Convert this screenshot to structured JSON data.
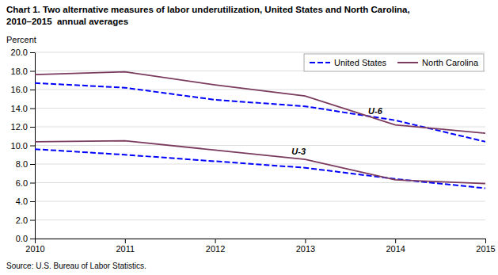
{
  "chart_data": {
    "type": "line",
    "title": "Chart 1. Two alternative measures of labor underutilization, United States and North Carolina,",
    "subtitle": "2010–2015  annual averages",
    "y_label": "Percent",
    "source": "Source: U.S. Bureau of Labor Statistics.",
    "x": [
      2010,
      2011,
      2012,
      2013,
      2014,
      2015
    ],
    "series": [
      {
        "name": "United States",
        "color": "#0000FF",
        "line_style": "dashed",
        "values": [
          16.7,
          16.2,
          14.9,
          14.2,
          12.7,
          10.4
        ]
      },
      {
        "name": "North Carolina",
        "color": "#7B3B5E",
        "line_style": "solid",
        "values": [
          17.6,
          17.9,
          16.5,
          15.3,
          12.2,
          11.3
        ]
      },
      {
        "name": "United States",
        "color": "#0000FF",
        "line_style": "dashed",
        "values": [
          9.6,
          9.0,
          8.3,
          7.6,
          6.4,
          5.4
        ]
      },
      {
        "name": "North Carolina",
        "color": "#7B3B5E",
        "line_style": "solid",
        "values": [
          10.4,
          10.5,
          9.5,
          8.5,
          6.3,
          5.9
        ]
      }
    ],
    "xlim": [
      2010,
      2015
    ],
    "xticks": [
      2010,
      2011,
      2012,
      2013,
      2014,
      2015
    ],
    "ylim": [
      0.0,
      20.0
    ],
    "yticks": [
      {
        "value": 0,
        "label": "0.0"
      },
      {
        "value": 2,
        "label": "2.0"
      },
      {
        "value": 4,
        "label": "4.0"
      },
      {
        "value": 6,
        "label": "6.0"
      },
      {
        "value": 8,
        "label": "8.0"
      },
      {
        "value": 10,
        "label": "10.0"
      },
      {
        "value": 12,
        "label": "12.0"
      },
      {
        "value": 14,
        "label": "14.0"
      },
      {
        "value": 16,
        "label": "16.0"
      },
      {
        "value": 18,
        "label": "18.0"
      },
      {
        "value": 20,
        "label": "20.0"
      }
    ],
    "grid": true,
    "legend": "top-right",
    "annotations": [
      {
        "text": "U-6",
        "x": 2013.7,
        "y": 13.4
      },
      {
        "text": "U-3",
        "x": 2012.85,
        "y": 9.0
      }
    ]
  }
}
